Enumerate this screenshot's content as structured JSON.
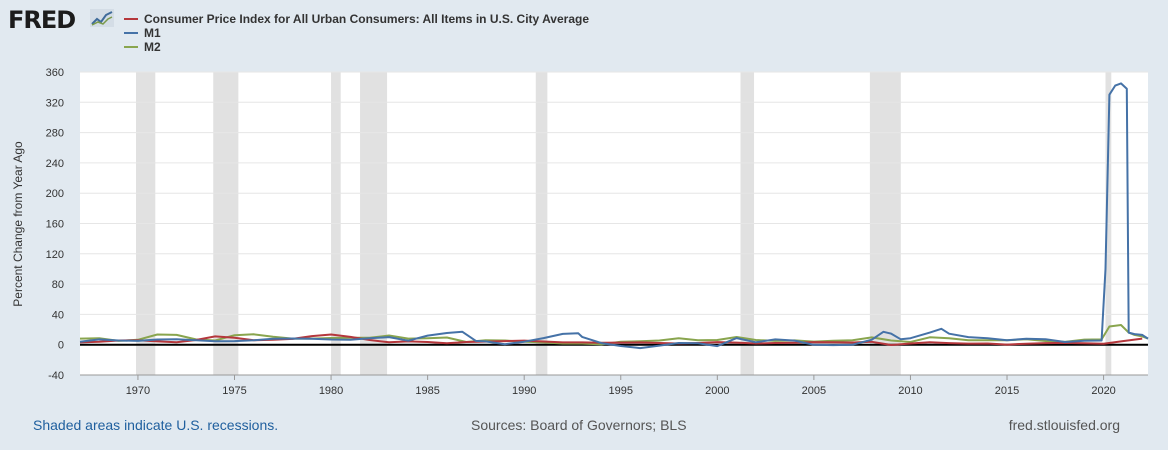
{
  "logo": {
    "text": "FRED",
    "icon": "line-chart-icon"
  },
  "footer": {
    "note": "Shaded areas indicate U.S. recessions.",
    "sources": "Sources: Board of Governors; BLS",
    "url": "fred.stlouisfed.org"
  },
  "chart_data": {
    "type": "line",
    "title": "",
    "xlabel": "",
    "ylabel": "Percent Change from Year Ago",
    "xlim": [
      1967,
      2022.3
    ],
    "ylim": [
      -40,
      360
    ],
    "yticks": [
      -40,
      0,
      40,
      80,
      120,
      160,
      200,
      240,
      280,
      320,
      360
    ],
    "xticks": [
      1970,
      1975,
      1980,
      1985,
      1990,
      1995,
      2000,
      2005,
      2010,
      2015,
      2020
    ],
    "grid": true,
    "legend_position": "top-left",
    "recessions": [
      [
        1969.9,
        1970.9
      ],
      [
        1973.9,
        1975.2
      ],
      [
        1980.0,
        1980.5
      ],
      [
        1981.5,
        1982.9
      ],
      [
        1990.6,
        1991.2
      ],
      [
        2001.2,
        2001.9
      ],
      [
        2007.9,
        2009.5
      ],
      [
        2020.1,
        2020.4
      ]
    ],
    "series": [
      {
        "name": "Consumer Price Index for All Urban Consumers: All Items in U.S. City Average",
        "color": "#b5373c",
        "x": [
          1967,
          1968,
          1969,
          1970,
          1971,
          1972,
          1973,
          1974,
          1975,
          1976,
          1977,
          1978,
          1979,
          1980,
          1981,
          1982,
          1983,
          1984,
          1985,
          1986,
          1987,
          1988,
          1989,
          1990,
          1991,
          1992,
          1993,
          1994,
          1995,
          1996,
          1997,
          1998,
          1999,
          2000,
          2001,
          2002,
          2003,
          2004,
          2005,
          2006,
          2007,
          2008,
          2009,
          2010,
          2011,
          2012,
          2013,
          2014,
          2015,
          2016,
          2017,
          2018,
          2019,
          2020,
          2021,
          2022
        ],
        "values": [
          3,
          4,
          5.5,
          6,
          4.3,
          3.3,
          6.2,
          11,
          9.1,
          5.8,
          6.5,
          7.6,
          11.3,
          13.5,
          10.3,
          6.2,
          3.2,
          4.3,
          3.6,
          1.9,
          3.6,
          4.1,
          4.8,
          5.4,
          4.2,
          3,
          3,
          2.6,
          2.8,
          3,
          2.3,
          1.6,
          2.2,
          3.4,
          2.8,
          1.6,
          2.3,
          2.7,
          3.4,
          3.2,
          2.9,
          3.8,
          -0.4,
          1.6,
          3.2,
          2.1,
          1.5,
          1.6,
          0.1,
          1.3,
          2.1,
          2.4,
          1.8,
          1.2,
          4.7,
          8
        ]
      },
      {
        "name": "M1",
        "color": "#4572a7",
        "x": [
          1967,
          1968,
          1969,
          1970,
          1971,
          1972,
          1973,
          1974,
          1975,
          1976,
          1977,
          1978,
          1979,
          1980,
          1981,
          1982,
          1983,
          1984,
          1985,
          1986,
          1986.8,
          1987.5,
          1988,
          1989,
          1990,
          1991,
          1992,
          1992.8,
          1993,
          1994,
          1995,
          1996,
          1997,
          1998,
          1999,
          2000,
          2001,
          2002,
          2003,
          2004,
          2005,
          2006,
          2007,
          2008,
          2008.6,
          2009,
          2009.5,
          2010,
          2011,
          2011.6,
          2012,
          2013,
          2014,
          2015,
          2016,
          2017,
          2018,
          2019,
          2019.9,
          2020.1,
          2020.3,
          2020.6,
          2020.9,
          2021.2,
          2021.3,
          2021.6,
          2022,
          2022.3
        ],
        "values": [
          4,
          7,
          5.5,
          5,
          6.8,
          7.3,
          6,
          4.5,
          4.8,
          5.8,
          7.9,
          8.2,
          7.8,
          6.9,
          6.6,
          8.4,
          10,
          5.3,
          12,
          15.5,
          17,
          5,
          4.3,
          0.6,
          4,
          8.7,
          14.3,
          15,
          10.3,
          2.1,
          -1.7,
          -4.5,
          -1.2,
          2.2,
          1.9,
          -1.8,
          8.7,
          3.2,
          7,
          5.4,
          -0.1,
          -0.5,
          0,
          6.6,
          17,
          14.7,
          7.1,
          8.6,
          16,
          21,
          14.5,
          10,
          8.5,
          6,
          7.8,
          7.2,
          3.6,
          5.2,
          5.5,
          100,
          330,
          342,
          345,
          338,
          16,
          14,
          13,
          8
        ]
      },
      {
        "name": "M2",
        "color": "#89a54e",
        "x": [
          1967,
          1968,
          1969,
          1970,
          1971,
          1972,
          1973,
          1974,
          1975,
          1976,
          1977,
          1978,
          1979,
          1980,
          1981,
          1982,
          1983,
          1984,
          1985,
          1986,
          1987,
          1988,
          1989,
          1990,
          1991,
          1992,
          1993,
          1994,
          1995,
          1996,
          1997,
          1998,
          1999,
          2000,
          2001,
          2002,
          2003,
          2004,
          2005,
          2006,
          2007,
          2008,
          2009,
          2010,
          2011,
          2012,
          2013,
          2014,
          2015,
          2016,
          2017,
          2018,
          2019,
          2019.9,
          2020.3,
          2020.9,
          2021.3,
          2021.6,
          2022,
          2022.3
        ],
        "values": [
          8,
          8.5,
          5,
          6.5,
          13.4,
          13,
          7,
          5.5,
          12.6,
          13.7,
          10.6,
          8,
          8.1,
          8.9,
          9.3,
          9.1,
          12.2,
          8,
          8.6,
          9.5,
          3.6,
          5.8,
          5.5,
          3.8,
          3.1,
          1.6,
          1.6,
          0.4,
          3.9,
          4.5,
          5.6,
          8.4,
          6,
          6.2,
          10.2,
          6.2,
          5,
          5.7,
          4.1,
          5.2,
          5.8,
          9.6,
          5.5,
          3.6,
          9.8,
          8.4,
          5.8,
          6,
          5.9,
          7.1,
          4.9,
          3.7,
          6.7,
          7,
          24,
          26,
          16,
          13,
          11,
          8
        ]
      }
    ]
  }
}
